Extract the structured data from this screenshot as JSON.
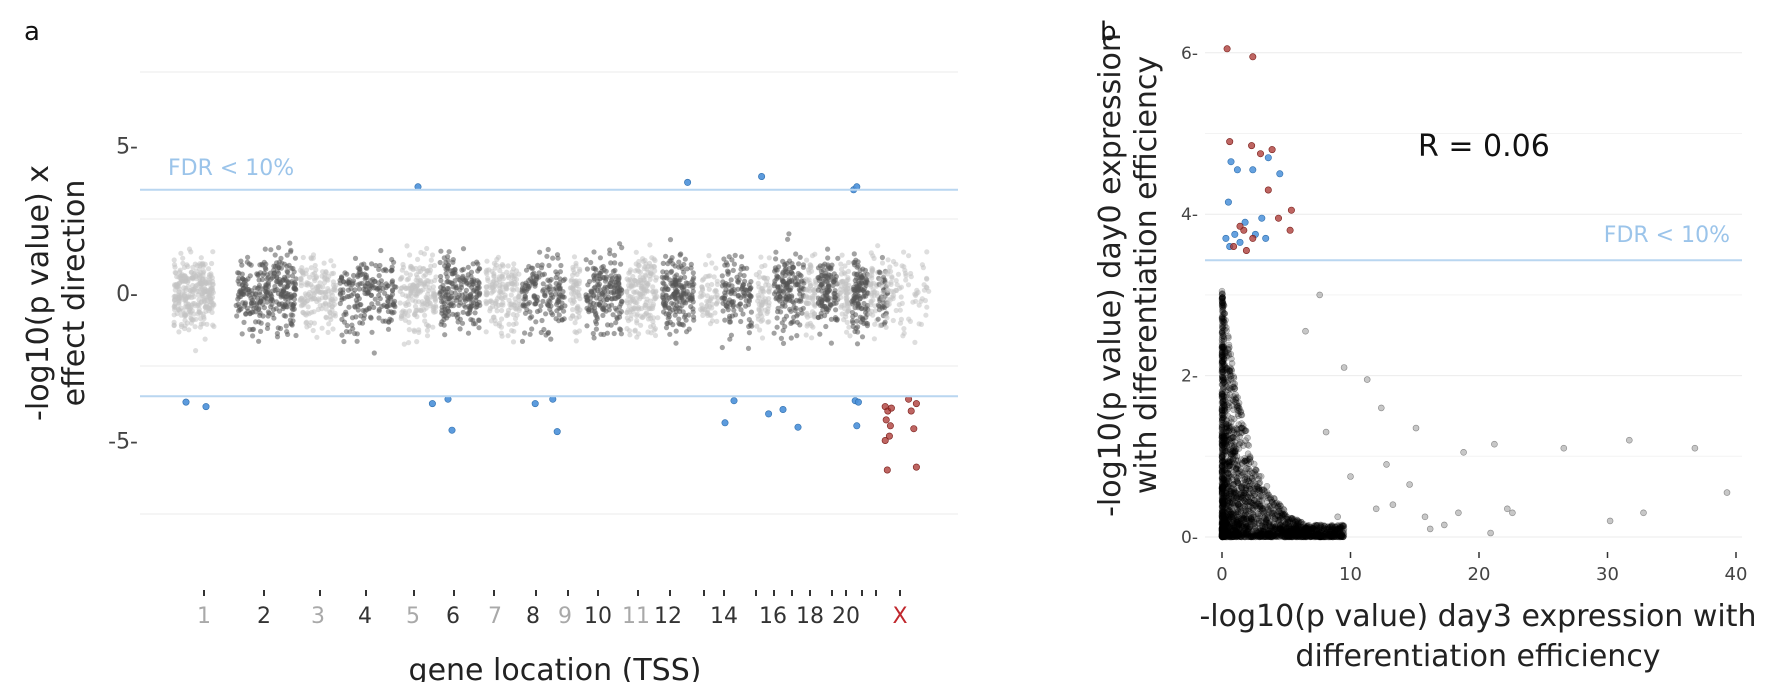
{
  "chart_data": [
    {
      "type": "scatter",
      "panel": "a",
      "xlabel": "gene location (TSS)",
      "ylabel": [
        "-log10(p value) x",
        "effect direction"
      ],
      "ylim": [
        -7.5,
        7.5
      ],
      "yticks": [
        5,
        0,
        -5
      ],
      "ytick_labels": [
        "5-",
        "0-",
        "-5-"
      ],
      "grid": true,
      "threshold": {
        "value": 3.5,
        "label": "FDR < 10%",
        "color": "#9bc4ea"
      },
      "chromosomes": [
        "1",
        "2",
        "3",
        "4",
        "5",
        "6",
        "7",
        "8",
        "9",
        "10",
        "11",
        "12",
        "13",
        "14",
        "15",
        "16",
        "17",
        "18",
        "19",
        "20",
        "21",
        "22",
        "X"
      ],
      "chromosome_labels": [
        "1",
        "2",
        "3",
        "4",
        "5",
        "6",
        "7",
        "8",
        "9",
        "10",
        "11",
        "12",
        "14",
        "16",
        "18",
        "20",
        "X"
      ],
      "colors": {
        "odd": "#c2c2c2",
        "even": "#555555",
        "significant": "#4a90d9",
        "x_significant": "#a8322d",
        "x_label": "#c0272d"
      },
      "significant_points": [
        {
          "chr": "1",
          "pos": 0.3,
          "y": -3.7
        },
        {
          "chr": "1",
          "pos": 0.8,
          "y": -3.85
        },
        {
          "chr": "5",
          "pos": 0.5,
          "y": 3.6
        },
        {
          "chr": "5",
          "pos": 0.9,
          "y": -3.75
        },
        {
          "chr": "6",
          "pos": 0.2,
          "y": -3.6
        },
        {
          "chr": "6",
          "pos": 0.3,
          "y": -4.65
        },
        {
          "chr": "8",
          "pos": 0.3,
          "y": -3.75
        },
        {
          "chr": "8",
          "pos": 0.7,
          "y": -3.6
        },
        {
          "chr": "8",
          "pos": 0.8,
          "y": -4.7
        },
        {
          "chr": "12",
          "pos": 0.8,
          "y": 3.75
        },
        {
          "chr": "14",
          "pos": 0.4,
          "y": -3.65
        },
        {
          "chr": "14",
          "pos": 0.1,
          "y": -4.4
        },
        {
          "chr": "15",
          "pos": 0.4,
          "y": 3.95
        },
        {
          "chr": "15",
          "pos": 0.9,
          "y": -4.1
        },
        {
          "chr": "16",
          "pos": 0.3,
          "y": -3.95
        },
        {
          "chr": "16",
          "pos": 0.8,
          "y": -4.55
        },
        {
          "chr": "20",
          "pos": 0.1,
          "y": 3.5
        },
        {
          "chr": "20",
          "pos": 0.3,
          "y": 3.6
        },
        {
          "chr": "20",
          "pos": 0.2,
          "y": -3.65
        },
        {
          "chr": "20",
          "pos": 0.4,
          "y": -3.7
        },
        {
          "chr": "20",
          "pos": 0.3,
          "y": -4.5
        }
      ],
      "x_significant_points": [
        {
          "pos": 0.1,
          "y": -3.85
        },
        {
          "pos": 0.15,
          "y": -4.0
        },
        {
          "pos": 0.12,
          "y": -4.3
        },
        {
          "pos": 0.18,
          "y": -4.85
        },
        {
          "pos": 0.1,
          "y": -5.0
        },
        {
          "pos": 0.2,
          "y": -4.5
        },
        {
          "pos": 0.22,
          "y": -3.9
        },
        {
          "pos": 0.14,
          "y": -6.0
        },
        {
          "pos": 0.55,
          "y": -3.6
        },
        {
          "pos": 0.6,
          "y": -4.0
        },
        {
          "pos": 0.7,
          "y": -3.75
        },
        {
          "pos": 0.65,
          "y": -4.6
        },
        {
          "pos": 0.7,
          "y": -5.9
        }
      ]
    },
    {
      "type": "scatter",
      "panel": "b",
      "xlabel": [
        "-log10(p value)  day3 expression with",
        "differentiation efficiency"
      ],
      "ylabel": [
        "-log10(p value)  day0 expression",
        "with differentiation efficiency"
      ],
      "xlim": [
        -1,
        41
      ],
      "ylim": [
        -0.2,
        6.3
      ],
      "xticks": [
        0,
        10,
        20,
        30,
        40
      ],
      "yticks": [
        0,
        2,
        4,
        6
      ],
      "xtick_labels": [
        "0",
        "10",
        "20",
        "30",
        "40"
      ],
      "ytick_labels": [
        "0-",
        "2-",
        "4-",
        "6-"
      ],
      "grid": true,
      "threshold": {
        "value": 3.43,
        "label": "FDR < 10%",
        "color": "#9bc4ea"
      },
      "annotation": "R = 0.06",
      "colors": {
        "base": "#000000",
        "blue": "#4a90d9",
        "red": "#a8322d"
      },
      "blue_points": [
        {
          "x": 0.3,
          "y": 3.7
        },
        {
          "x": 0.6,
          "y": 3.6
        },
        {
          "x": 1.0,
          "y": 3.75
        },
        {
          "x": 1.4,
          "y": 3.65
        },
        {
          "x": 0.5,
          "y": 4.15
        },
        {
          "x": 1.8,
          "y": 3.9
        },
        {
          "x": 2.6,
          "y": 3.75
        },
        {
          "x": 3.4,
          "y": 3.7
        },
        {
          "x": 4.5,
          "y": 4.5
        },
        {
          "x": 3.6,
          "y": 4.7
        },
        {
          "x": 2.4,
          "y": 4.55
        },
        {
          "x": 1.2,
          "y": 4.55
        },
        {
          "x": 0.7,
          "y": 4.65
        },
        {
          "x": 3.1,
          "y": 3.95
        }
      ],
      "red_points": [
        {
          "x": 0.4,
          "y": 6.05
        },
        {
          "x": 2.4,
          "y": 5.95
        },
        {
          "x": 0.6,
          "y": 4.9
        },
        {
          "x": 2.3,
          "y": 4.85
        },
        {
          "x": 3.9,
          "y": 4.8
        },
        {
          "x": 3.0,
          "y": 4.75
        },
        {
          "x": 3.6,
          "y": 4.3
        },
        {
          "x": 5.4,
          "y": 4.05
        },
        {
          "x": 4.4,
          "y": 3.95
        },
        {
          "x": 5.3,
          "y": 3.8
        },
        {
          "x": 1.7,
          "y": 3.8
        },
        {
          "x": 0.9,
          "y": 3.6
        },
        {
          "x": 2.4,
          "y": 3.7
        },
        {
          "x": 1.4,
          "y": 3.85
        },
        {
          "x": 1.9,
          "y": 3.55
        }
      ],
      "outlier_points": [
        {
          "x": 39.3,
          "y": 0.55
        },
        {
          "x": 36.8,
          "y": 1.1
        },
        {
          "x": 31.7,
          "y": 1.2
        },
        {
          "x": 32.8,
          "y": 0.3
        },
        {
          "x": 30.2,
          "y": 0.2
        },
        {
          "x": 26.6,
          "y": 1.1
        },
        {
          "x": 22.6,
          "y": 0.3
        },
        {
          "x": 22.2,
          "y": 0.35
        },
        {
          "x": 21.2,
          "y": 1.15
        },
        {
          "x": 18.8,
          "y": 1.05
        },
        {
          "x": 18.4,
          "y": 0.3
        },
        {
          "x": 20.9,
          "y": 0.05
        },
        {
          "x": 16.2,
          "y": 0.1
        },
        {
          "x": 15.1,
          "y": 1.35
        },
        {
          "x": 14.6,
          "y": 0.65
        },
        {
          "x": 12.4,
          "y": 1.6
        },
        {
          "x": 12.8,
          "y": 0.9
        },
        {
          "x": 11.3,
          "y": 1.95
        },
        {
          "x": 13.3,
          "y": 0.4
        },
        {
          "x": 17.3,
          "y": 0.15
        },
        {
          "x": 9.5,
          "y": 2.1
        },
        {
          "x": 8.1,
          "y": 1.3
        },
        {
          "x": 7.6,
          "y": 3.0
        },
        {
          "x": 10.0,
          "y": 0.75
        },
        {
          "x": 15.8,
          "y": 0.25
        },
        {
          "x": 12.0,
          "y": 0.35
        },
        {
          "x": 9.0,
          "y": 0.25
        },
        {
          "x": 6.5,
          "y": 2.55
        }
      ]
    }
  ]
}
